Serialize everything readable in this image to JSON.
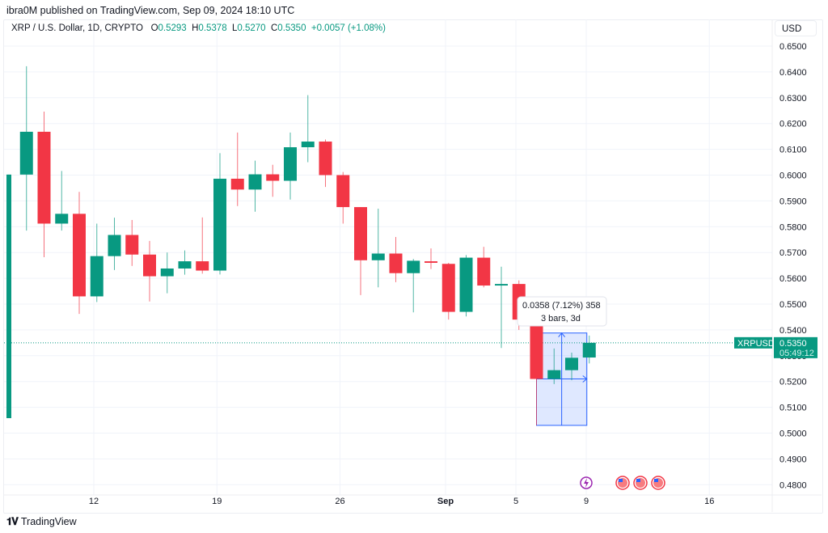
{
  "header": {
    "published": "ibra0M published on TradingView.com, Sep 09, 2024 18:10 UTC"
  },
  "legend": {
    "symbol": "XRP / U.S. Dollar, 1D, CRYPTO",
    "o_label": "O",
    "o_value": "0.5293",
    "h_label": "H",
    "h_value": "0.5378",
    "l_label": "L",
    "l_value": "0.5270",
    "c_label": "C",
    "c_value": "0.5350",
    "change": "+0.0057 (+1.08%)"
  },
  "currency": "USD",
  "price_tag": {
    "symbol": "XRPUSD",
    "price": "0.5350",
    "countdown": "05:49:12"
  },
  "measure": {
    "line1": "0.0358 (7.12%) 358",
    "line2": "3 bars, 3d"
  },
  "footer": {
    "brand": "TradingView"
  },
  "colors": {
    "up": "#089981",
    "down": "#f23645",
    "measure": "#2962ff",
    "grid": "#f0f3fa"
  },
  "chart_data": {
    "type": "candlestick",
    "title": "XRP / U.S. Dollar, 1D, CRYPTO",
    "xlabel": "",
    "ylabel": "USD",
    "ylim": [
      0.475,
      0.655
    ],
    "y_ticks": [
      "0.6500",
      "0.6400",
      "0.6300",
      "0.6200",
      "0.6100",
      "0.6000",
      "0.5900",
      "0.5800",
      "0.5700",
      "0.5600",
      "0.5500",
      "0.5400",
      "0.5300",
      "0.5200",
      "0.5100",
      "0.5000",
      "0.4900",
      "0.4800"
    ],
    "x_ticks": [
      {
        "label": "12",
        "day": 12
      },
      {
        "label": "19",
        "day": 19
      },
      {
        "label": "26",
        "day": 26
      },
      {
        "label": "Sep",
        "day": 32
      },
      {
        "label": "5",
        "day": 36
      },
      {
        "label": "9",
        "day": 40
      },
      {
        "label": "16",
        "day": 47
      }
    ],
    "candles": [
      {
        "date": "Aug 7",
        "o": 0.5058,
        "h": 0.6002,
        "l": 0.5058,
        "c": 0.6002
      },
      {
        "date": "Aug 8",
        "o": 0.6002,
        "h": 0.6422,
        "l": 0.5785,
        "c": 0.6168
      },
      {
        "date": "Aug 9",
        "o": 0.6168,
        "h": 0.6246,
        "l": 0.5682,
        "c": 0.5812
      },
      {
        "date": "Aug 10",
        "o": 0.5812,
        "h": 0.6016,
        "l": 0.5785,
        "c": 0.585
      },
      {
        "date": "Aug 11",
        "o": 0.585,
        "h": 0.5935,
        "l": 0.5462,
        "c": 0.553
      },
      {
        "date": "Aug 12",
        "o": 0.553,
        "h": 0.5812,
        "l": 0.5508,
        "c": 0.5686
      },
      {
        "date": "Aug 13",
        "o": 0.5686,
        "h": 0.5835,
        "l": 0.5632,
        "c": 0.5768
      },
      {
        "date": "Aug 14",
        "o": 0.5768,
        "h": 0.5826,
        "l": 0.5648,
        "c": 0.5692
      },
      {
        "date": "Aug 15",
        "o": 0.5692,
        "h": 0.5745,
        "l": 0.551,
        "c": 0.5608
      },
      {
        "date": "Aug 16",
        "o": 0.5608,
        "h": 0.57,
        "l": 0.5542,
        "c": 0.5638
      },
      {
        "date": "Aug 17",
        "o": 0.5638,
        "h": 0.5708,
        "l": 0.5614,
        "c": 0.5666
      },
      {
        "date": "Aug 18",
        "o": 0.5666,
        "h": 0.5836,
        "l": 0.5618,
        "c": 0.563
      },
      {
        "date": "Aug 19",
        "o": 0.563,
        "h": 0.6085,
        "l": 0.5615,
        "c": 0.5986
      },
      {
        "date": "Aug 20",
        "o": 0.5986,
        "h": 0.6165,
        "l": 0.588,
        "c": 0.5944
      },
      {
        "date": "Aug 21",
        "o": 0.5944,
        "h": 0.6056,
        "l": 0.5858,
        "c": 0.6003
      },
      {
        "date": "Aug 22",
        "o": 0.6003,
        "h": 0.604,
        "l": 0.5916,
        "c": 0.5978
      },
      {
        "date": "Aug 23",
        "o": 0.5978,
        "h": 0.6165,
        "l": 0.5905,
        "c": 0.6108
      },
      {
        "date": "Aug 24",
        "o": 0.6108,
        "h": 0.631,
        "l": 0.605,
        "c": 0.613
      },
      {
        "date": "Aug 25",
        "o": 0.613,
        "h": 0.6138,
        "l": 0.5954,
        "c": 0.6
      },
      {
        "date": "Aug 26",
        "o": 0.6,
        "h": 0.6012,
        "l": 0.5812,
        "c": 0.5876
      },
      {
        "date": "Aug 27",
        "o": 0.5876,
        "h": 0.5876,
        "l": 0.5535,
        "c": 0.567
      },
      {
        "date": "Aug 28",
        "o": 0.567,
        "h": 0.587,
        "l": 0.5565,
        "c": 0.5696
      },
      {
        "date": "Aug 29",
        "o": 0.5696,
        "h": 0.576,
        "l": 0.5585,
        "c": 0.562
      },
      {
        "date": "Aug 30",
        "o": 0.562,
        "h": 0.5675,
        "l": 0.5468,
        "c": 0.5668
      },
      {
        "date": "Aug 31",
        "o": 0.5666,
        "h": 0.5716,
        "l": 0.5636,
        "c": 0.566
      },
      {
        "date": "Sep 1",
        "o": 0.5656,
        "h": 0.566,
        "l": 0.544,
        "c": 0.547
      },
      {
        "date": "Sep 2",
        "o": 0.547,
        "h": 0.569,
        "l": 0.5452,
        "c": 0.568
      },
      {
        "date": "Sep 3",
        "o": 0.568,
        "h": 0.5722,
        "l": 0.5565,
        "c": 0.5572
      },
      {
        "date": "Sep 4",
        "o": 0.5572,
        "h": 0.5645,
        "l": 0.533,
        "c": 0.5578
      },
      {
        "date": "Sep 5",
        "o": 0.5578,
        "h": 0.5592,
        "l": 0.54,
        "c": 0.544
      },
      {
        "date": "Sep 6",
        "o": 0.544,
        "h": 0.547,
        "l": 0.503,
        "c": 0.521
      },
      {
        "date": "Sep 7",
        "o": 0.521,
        "h": 0.5328,
        "l": 0.519,
        "c": 0.5244
      },
      {
        "date": "Sep 8",
        "o": 0.5244,
        "h": 0.5312,
        "l": 0.5205,
        "c": 0.5292
      },
      {
        "date": "Sep 9",
        "o": 0.5293,
        "h": 0.5378,
        "l": 0.527,
        "c": 0.535
      }
    ],
    "last_price": 0.535,
    "measure_range": {
      "from": 0.503,
      "to": 0.5388,
      "bars": 3,
      "days": "3d",
      "change": "0.0358",
      "pct": "7.12%"
    },
    "events": [
      {
        "type": "dividend/split",
        "day": 40
      },
      {
        "type": "us-econ",
        "day": 42
      },
      {
        "type": "us-econ",
        "day": 43
      },
      {
        "type": "us-econ",
        "day": 44
      }
    ]
  }
}
